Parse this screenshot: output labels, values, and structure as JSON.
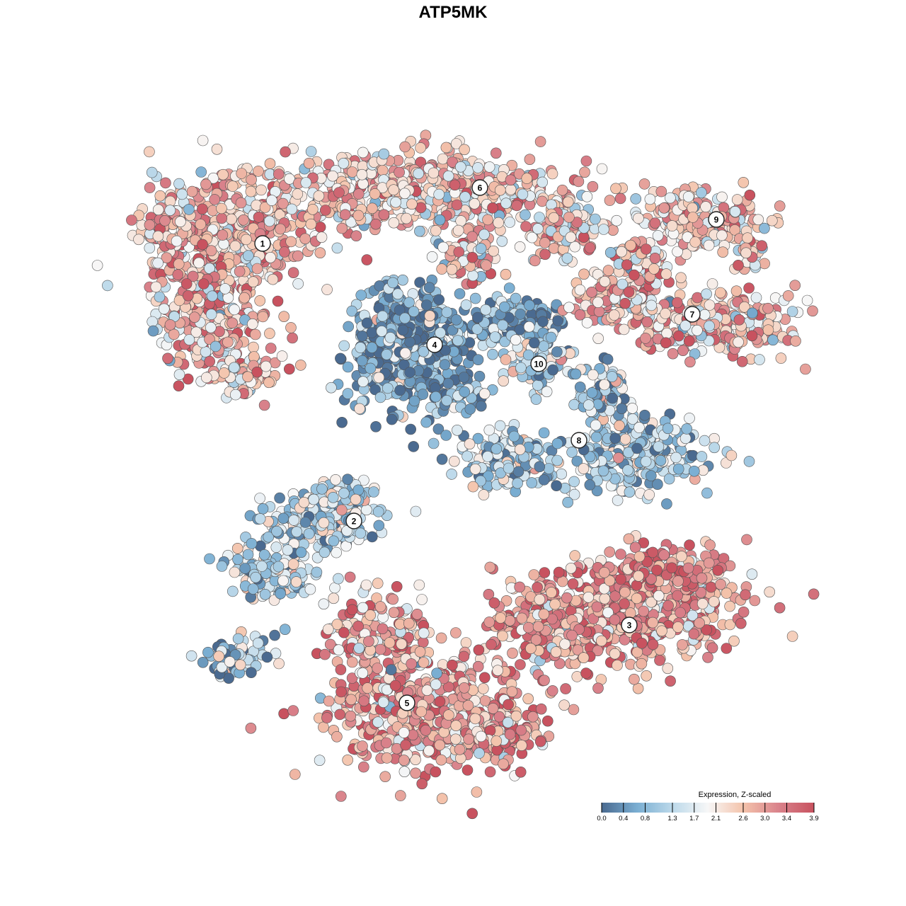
{
  "title": "ATP5MK",
  "chart_data": {
    "type": "scatter",
    "title": "ATP5MK",
    "xlabel": "",
    "ylabel": "",
    "grid": false,
    "axes_visible": false,
    "color_variable": "Expression, Z-scaled",
    "colorbar": {
      "title": "Expression, Z-scaled",
      "ticks": [
        0.0,
        0.4,
        0.8,
        1.3,
        1.7,
        2.1,
        2.6,
        3.0,
        3.4,
        3.9
      ],
      "tick_labels": [
        "0.0",
        "0.4",
        "0.8",
        "1.3",
        "1.7",
        "2.1",
        "2.6",
        "3.0",
        "3.4",
        "3.9"
      ],
      "range": [
        0.0,
        3.9
      ],
      "colors": [
        "#4a6a90",
        "#7aaed2",
        "#bcd9ea",
        "#f7f7f7",
        "#f4c3ab",
        "#d9828b",
        "#c8525f"
      ],
      "position": "bottom-right"
    },
    "clusters": [
      {
        "label": "1",
        "mean_expression": 2.6
      },
      {
        "label": "2",
        "mean_expression": 1.2
      },
      {
        "label": "3",
        "mean_expression": 3.0
      },
      {
        "label": "4",
        "mean_expression": 0.6
      },
      {
        "label": "5",
        "mean_expression": 2.9
      },
      {
        "label": "6",
        "mean_expression": 2.4
      },
      {
        "label": "7",
        "mean_expression": 2.5
      },
      {
        "label": "8",
        "mean_expression": 1.2
      },
      {
        "label": "9",
        "mean_expression": 2.4
      },
      {
        "label": "10",
        "mean_expression": 1.2
      }
    ]
  }
}
